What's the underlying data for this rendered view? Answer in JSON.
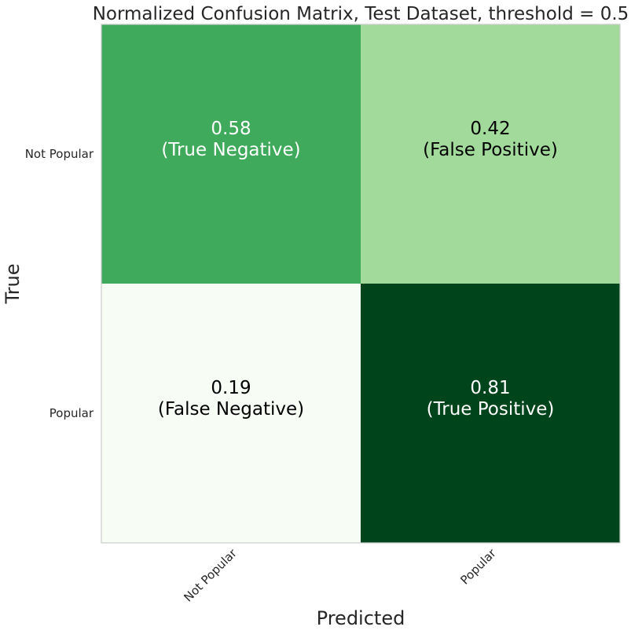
{
  "chart_data": {
    "type": "heatmap",
    "title": "Normalized Confusion Matrix, Test Dataset, threshold = 0.5",
    "xlabel": "Predicted",
    "ylabel": "True",
    "x_categories": [
      "Not Popular",
      "Popular"
    ],
    "y_categories": [
      "Not Popular",
      "Popular"
    ],
    "values": [
      [
        0.58,
        0.42
      ],
      [
        0.19,
        0.81
      ]
    ],
    "value_labels": [
      [
        "0.58",
        "0.42"
      ],
      [
        "0.19",
        "0.81"
      ]
    ],
    "cell_labels": [
      [
        "(True Negative)",
        "(False Positive)"
      ],
      [
        "(False Negative)",
        "(True Positive)"
      ]
    ],
    "color_range": [
      0.19,
      0.81
    ],
    "colormap": "Greens",
    "grid": false,
    "colors": {
      "frame": "#cccccc",
      "text_dark": "#000000",
      "text_light": "#ffffff"
    }
  }
}
